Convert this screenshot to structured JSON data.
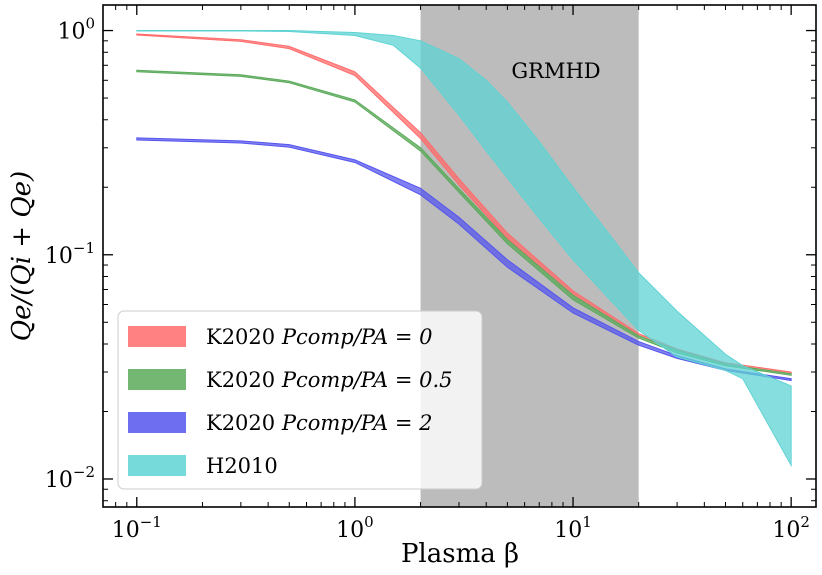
{
  "chart_data": {
    "type": "area",
    "xlabel": "Plasma β",
    "ylabel": "Qe/(Qi + Qe)",
    "xscale": "log",
    "yscale": "log",
    "xlim": [
      0.07,
      130
    ],
    "ylim": [
      0.0075,
      1.3
    ],
    "grid": false,
    "legend_position": "lower-left",
    "x_ticks": [
      {
        "value": 0.1,
        "base": "10",
        "exp": "−1"
      },
      {
        "value": 1,
        "base": "10",
        "exp": "0"
      },
      {
        "value": 10,
        "base": "10",
        "exp": "1"
      },
      {
        "value": 100,
        "base": "10",
        "exp": "2"
      }
    ],
    "y_ticks": [
      {
        "value": 0.01,
        "base": "10",
        "exp": "−2"
      },
      {
        "value": 0.1,
        "base": "10",
        "exp": "−1"
      },
      {
        "value": 1,
        "base": "10",
        "exp": "0"
      }
    ],
    "shaded_region": {
      "label": "GRMHD",
      "x_range": [
        2,
        20
      ],
      "color": "#a0a0a0",
      "opacity": 0.7
    },
    "series": [
      {
        "name": "K2020 Pcomp/PA = 0",
        "legend_plain": "K2020 ",
        "legend_math": "Pcomp/PA = 0",
        "color": "#ff6b6b",
        "x": [
          0.1,
          0.3,
          0.5,
          1,
          2,
          3,
          5,
          10,
          20,
          30,
          50,
          100
        ],
        "lower": [
          0.955,
          0.895,
          0.83,
          0.63,
          0.33,
          0.205,
          0.118,
          0.066,
          0.0435,
          0.0375,
          0.0325,
          0.0295
        ],
        "upper": [
          0.965,
          0.91,
          0.85,
          0.655,
          0.35,
          0.218,
          0.125,
          0.069,
          0.0445,
          0.038,
          0.033,
          0.03
        ]
      },
      {
        "name": "K2020 Pcomp/PA = 0.5",
        "legend_plain": "K2020 ",
        "legend_math": "Pcomp/PA = 0.5",
        "color": "#5aaa5a",
        "x": [
          0.1,
          0.3,
          0.5,
          1,
          2,
          3,
          5,
          10,
          20,
          30,
          50,
          100
        ],
        "lower": [
          0.655,
          0.625,
          0.585,
          0.48,
          0.29,
          0.19,
          0.112,
          0.063,
          0.0425,
          0.0365,
          0.032,
          0.029
        ],
        "upper": [
          0.665,
          0.635,
          0.595,
          0.49,
          0.3,
          0.197,
          0.117,
          0.066,
          0.0435,
          0.0375,
          0.0325,
          0.0295
        ]
      },
      {
        "name": "K2020 Pcomp/PA = 2",
        "legend_plain": "K2020 ",
        "legend_math": "Pcomp/PA = 2",
        "color": "#5555ee",
        "x": [
          0.1,
          0.3,
          0.5,
          1,
          2,
          3,
          5,
          10,
          20,
          30,
          50,
          100
        ],
        "lower": [
          0.325,
          0.315,
          0.302,
          0.258,
          0.185,
          0.137,
          0.088,
          0.055,
          0.0395,
          0.0345,
          0.0305,
          0.0275
        ],
        "upper": [
          0.332,
          0.322,
          0.31,
          0.265,
          0.198,
          0.147,
          0.095,
          0.058,
          0.041,
          0.0355,
          0.031,
          0.028
        ]
      },
      {
        "name": "H2010",
        "legend_plain": "H2010",
        "legend_math": "",
        "color": "#5fd3d3",
        "x": [
          0.1,
          0.3,
          0.5,
          1,
          1.5,
          2,
          3,
          4,
          5,
          7,
          10,
          15,
          20,
          30,
          50,
          60,
          100
        ],
        "lower": [
          0.995,
          0.995,
          0.99,
          0.95,
          0.86,
          0.68,
          0.42,
          0.29,
          0.22,
          0.145,
          0.095,
          0.062,
          0.046,
          0.035,
          0.0305,
          0.028,
          0.0115
        ],
        "upper": [
          1.0,
          1.0,
          1.0,
          0.98,
          0.95,
          0.9,
          0.75,
          0.6,
          0.48,
          0.32,
          0.2,
          0.12,
          0.083,
          0.056,
          0.036,
          0.032,
          0.026
        ]
      }
    ]
  }
}
